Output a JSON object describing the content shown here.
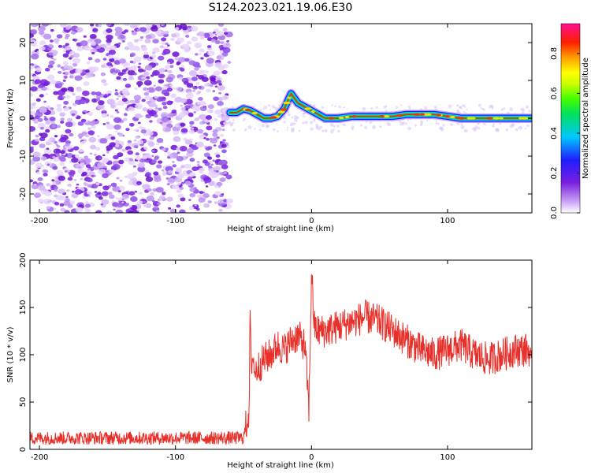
{
  "title": "S124.2023.021.19.06.E30",
  "colors": {
    "snr_line": "#e8302a",
    "axis": "#000000",
    "scatter_base": "#7a1fe0",
    "background": "#ffffff"
  },
  "chart_data": [
    {
      "type": "heatmap",
      "title": "S124.2023.021.19.06.E30",
      "xlabel": "Height of straight line (km)",
      "ylabel": "Frequency (Hz)",
      "xlim": [
        -207,
        162
      ],
      "ylim": [
        -25,
        25
      ],
      "x_ticks": [
        -200,
        -100,
        0,
        100
      ],
      "y_ticks": [
        -20,
        -10,
        0,
        10,
        20
      ],
      "noise_region_x": [
        -207,
        -60
      ],
      "ridge_x": [
        -60,
        -55,
        -50,
        -45,
        -40,
        -35,
        -30,
        -25,
        -20,
        -17,
        -15,
        -12,
        -10,
        -5,
        0,
        5,
        10,
        20,
        30,
        40,
        50,
        60,
        70,
        80,
        90,
        100,
        110,
        120,
        130,
        140,
        150,
        162
      ],
      "ridge_frequency": [
        1.5,
        1.5,
        2.5,
        2.0,
        1.0,
        0.0,
        0.0,
        0.5,
        2.5,
        5.0,
        6.5,
        5.0,
        4.0,
        3.0,
        2.0,
        1.0,
        0.0,
        0.0,
        0.5,
        0.5,
        0.5,
        0.5,
        1.0,
        1.0,
        1.0,
        0.5,
        0.0,
        0.0,
        0.0,
        0.0,
        0.0,
        0.0
      ],
      "colorbar": {
        "label": "Normalized spectral amplitude",
        "range": [
          0,
          0.95
        ],
        "ticks": [
          0.0,
          0.2,
          0.4,
          0.6,
          0.8
        ]
      }
    },
    {
      "type": "line",
      "xlabel": "Height of straight line (km)",
      "ylabel": "SNR (10 * v/v)",
      "xlim": [
        -207,
        162
      ],
      "ylim": [
        0,
        200
      ],
      "x_ticks": [
        -200,
        -100,
        0,
        100
      ],
      "y_ticks": [
        0,
        50,
        100,
        150,
        200
      ],
      "series": [
        {
          "x": [
            -207,
            -190,
            -170,
            -150,
            -130,
            -110,
            -90,
            -70,
            -50,
            -46,
            -45,
            -44,
            -43,
            -42,
            -40,
            -35,
            -30,
            -25,
            -20,
            -15,
            -10,
            -5,
            -3,
            -2,
            -1,
            0,
            2,
            5,
            10,
            20,
            30,
            40,
            50,
            60,
            70,
            80,
            90,
            100,
            110,
            120,
            130,
            140,
            150,
            160,
            162
          ],
          "values": [
            12,
            12,
            12,
            12,
            12,
            12,
            12,
            12,
            12,
            40,
            150,
            60,
            110,
            80,
            85,
            95,
            100,
            110,
            105,
            115,
            120,
            110,
            70,
            40,
            110,
            190,
            130,
            125,
            125,
            130,
            135,
            140,
            135,
            125,
            115,
            105,
            100,
            105,
            110,
            100,
            95,
            100,
            105,
            105,
            80
          ]
        }
      ]
    }
  ]
}
